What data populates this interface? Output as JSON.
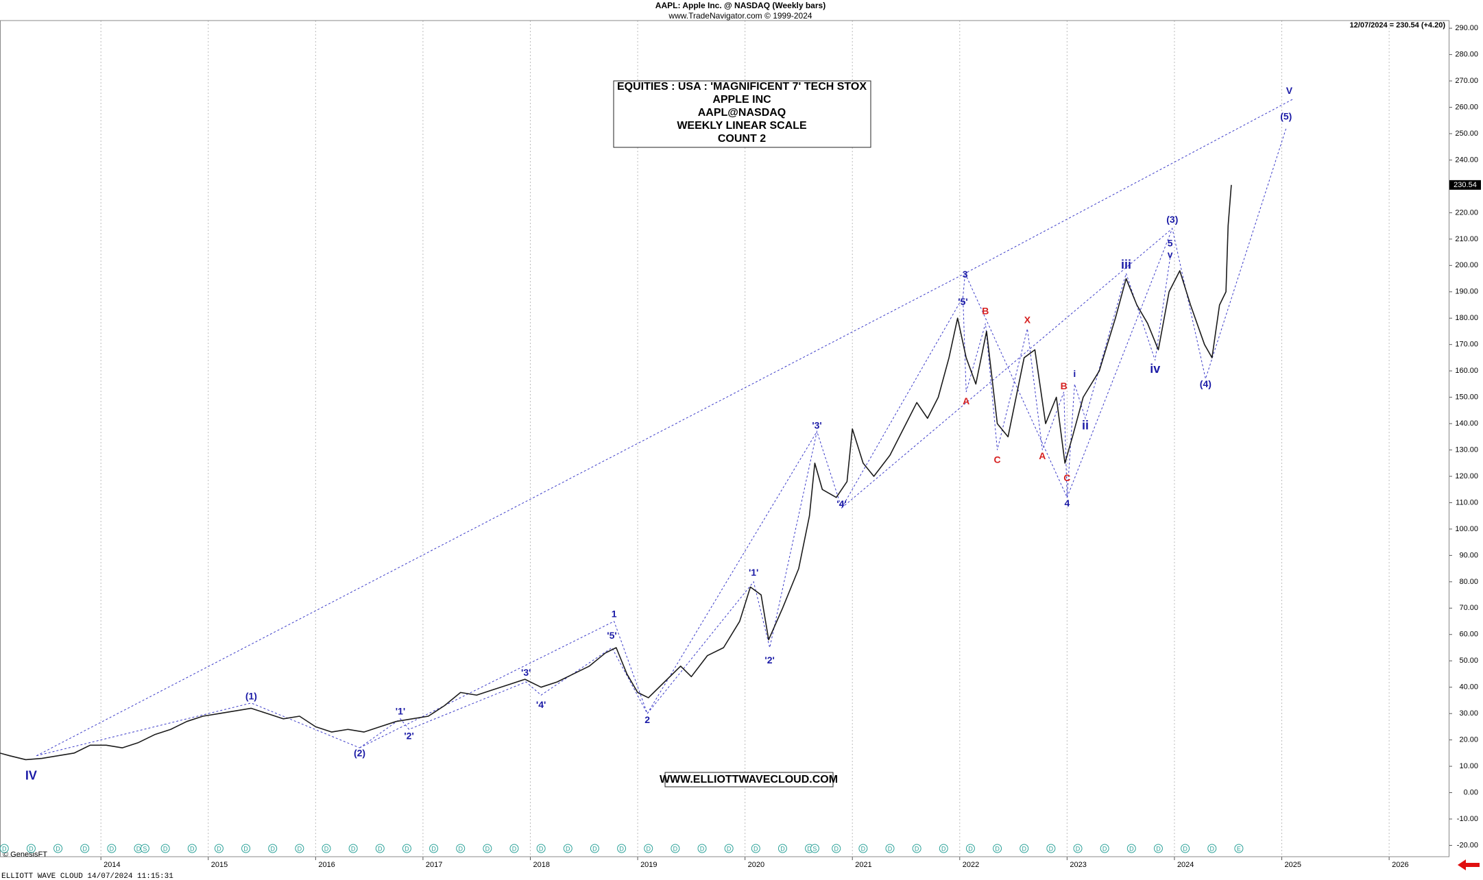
{
  "chart_data": {
    "type": "line",
    "title": "AAPL:  Apple Inc. @ NASDAQ  (Weekly bars)",
    "subtitle": "www.TradeNavigator.com © 1999-2024",
    "last_quote": "12/07/2024 = 230.54 (+4.20)",
    "info_box": [
      "EQUITIES : USA : 'MAGNIFICENT 7' TECH STOX",
      "APPLE INC",
      "AAPL@NASDAQ",
      "WEEKLY LINEAR SCALE",
      "COUNT 2"
    ],
    "website": "WWW.ELLIOTTWAVECLOUD.COM",
    "credit": "© GenesisFT",
    "footer": "ELLIOTT WAVE CLOUD   14/07/2024 11:15:31",
    "color": "#1a1a1a",
    "x": [
      2013.06,
      2013.15,
      2013.3,
      2013.45,
      2013.6,
      2013.75,
      2013.9,
      2014.05,
      2014.2,
      2014.35,
      2014.5,
      2014.65,
      2014.8,
      2014.95,
      2015.1,
      2015.25,
      2015.4,
      2015.55,
      2015.7,
      2015.85,
      2016.0,
      2016.15,
      2016.3,
      2016.45,
      2016.6,
      2016.75,
      2016.9,
      2017.05,
      2017.2,
      2017.35,
      2017.5,
      2017.65,
      2017.8,
      2017.95,
      2018.1,
      2018.25,
      2018.4,
      2018.55,
      2018.7,
      2018.8,
      2018.9,
      2019.0,
      2019.1,
      2019.25,
      2019.4,
      2019.5,
      2019.65,
      2019.8,
      2019.95,
      2020.05,
      2020.15,
      2020.22,
      2020.35,
      2020.5,
      2020.6,
      2020.65,
      2020.72,
      2020.85,
      2020.95,
      2021.0,
      2021.1,
      2021.2,
      2021.35,
      2021.5,
      2021.6,
      2021.7,
      2021.8,
      2021.9,
      2021.98,
      2022.06,
      2022.15,
      2022.25,
      2022.35,
      2022.45,
      2022.6,
      2022.7,
      2022.8,
      2022.9,
      2022.98,
      2023.05,
      2023.15,
      2023.3,
      2023.45,
      2023.55,
      2023.65,
      2023.75,
      2023.85,
      2023.95,
      2024.05,
      2024.15,
      2024.28,
      2024.35,
      2024.42,
      2024.48,
      2024.5,
      2024.53
    ],
    "values": [
      15,
      14,
      12.5,
      13,
      14,
      15,
      18,
      18,
      17,
      19,
      22,
      24,
      27,
      29,
      30,
      31,
      32,
      30,
      28,
      29,
      25,
      23,
      24,
      23,
      25,
      27,
      28,
      29,
      33,
      38,
      37,
      39,
      41,
      43,
      40,
      42,
      45,
      48,
      53,
      55,
      45,
      38,
      36,
      42,
      48,
      44,
      52,
      55,
      65,
      78,
      75,
      58,
      70,
      85,
      105,
      125,
      115,
      112,
      118,
      138,
      125,
      120,
      128,
      140,
      148,
      142,
      150,
      165,
      180,
      165,
      155,
      175,
      140,
      135,
      165,
      168,
      140,
      150,
      125,
      135,
      150,
      160,
      180,
      195,
      185,
      178,
      168,
      190,
      198,
      185,
      170,
      165,
      185,
      190,
      215,
      230.54
    ],
    "xlim": [
      2013.06,
      2026.555
    ],
    "xticks": [
      2014,
      2015,
      2016,
      2017,
      2018,
      2019,
      2020,
      2021,
      2022,
      2023,
      2024,
      2025,
      2026
    ],
    "ylim": [
      -24.3,
      292.9
    ],
    "yticks": [
      {
        "value": -20,
        "label": "-20.00"
      },
      {
        "value": -10,
        "label": "-10.00"
      },
      {
        "value": 0,
        "label": "0.00"
      },
      {
        "value": 10,
        "label": "10.00"
      },
      {
        "value": 20,
        "label": "20.00"
      },
      {
        "value": 30,
        "label": "30.00"
      },
      {
        "value": 40,
        "label": "40.00"
      },
      {
        "value": 50,
        "label": "50.00"
      },
      {
        "value": 60,
        "label": "60.00"
      },
      {
        "value": 70,
        "label": "70.00"
      },
      {
        "value": 80,
        "label": "80.00"
      },
      {
        "value": 90,
        "label": "90.00"
      },
      {
        "value": 100,
        "label": "100.00"
      },
      {
        "value": 110,
        "label": "110.00"
      },
      {
        "value": 120,
        "label": "120.00"
      },
      {
        "value": 130,
        "label": "130.00"
      },
      {
        "value": 140,
        "label": "140.00"
      },
      {
        "value": 150,
        "label": "150.00"
      },
      {
        "value": 160,
        "label": "160.00"
      },
      {
        "value": 170,
        "label": "170.00"
      },
      {
        "value": 180,
        "label": "180.00"
      },
      {
        "value": 190,
        "label": "190.00"
      },
      {
        "value": 200,
        "label": "200.00"
      },
      {
        "value": 210,
        "label": "210.00"
      },
      {
        "value": 220,
        "label": "220.00"
      },
      {
        "value": 230,
        "label": "230.00"
      },
      {
        "value": 240,
        "label": "240.00"
      },
      {
        "value": 250,
        "label": "250.00"
      },
      {
        "value": 260,
        "label": "260.00"
      },
      {
        "value": 270,
        "label": "270.00"
      },
      {
        "value": 280,
        "label": "280.00"
      },
      {
        "value": 290,
        "label": "290.00"
      }
    ],
    "grid": true,
    "trendline_color": "#3a3ac8",
    "trendlines": [
      {
        "x": [
          2013.4,
          2022.05,
          2025.1
        ],
        "y": [
          14,
          197,
          263
        ]
      },
      {
        "x": [
          2013.4,
          2015.4,
          2016.41
        ],
        "y": [
          14,
          34,
          17
        ]
      },
      {
        "x": [
          2016.41,
          2016.79,
          2016.87,
          2017.96,
          2018.1,
          2018.76,
          2019.09
        ],
        "y": [
          17,
          28,
          24,
          42,
          37,
          55,
          30
        ]
      },
      {
        "x": [
          2016.41,
          2018.78,
          2019.09
        ],
        "y": [
          17,
          65,
          30
        ]
      },
      {
        "x": [
          2019.09,
          2020.08,
          2020.23,
          2020.67,
          2020.9,
          2022.03,
          2022.05
        ],
        "y": [
          30,
          80,
          55,
          137,
          108,
          188,
          197
        ]
      },
      {
        "x": [
          2019.09,
          2020.67
        ],
        "y": [
          30,
          137
        ]
      },
      {
        "x": [
          2022.05,
          2023.0
        ],
        "y": [
          197,
          112
        ]
      },
      {
        "x": [
          2022.03,
          2022.06,
          2022.24,
          2022.35,
          2022.63,
          2022.77,
          2022.97,
          2023.0
        ],
        "y": [
          188,
          152,
          178,
          130,
          176,
          130,
          152,
          112
        ]
      },
      {
        "x": [
          2020.9,
          2023.98
        ],
        "y": [
          108,
          214
        ]
      },
      {
        "x": [
          2023.0,
          2023.98,
          2024.29,
          2025.04
        ],
        "y": [
          112,
          214,
          157,
          252
        ]
      },
      {
        "x": [
          2023.0,
          2023.07,
          2023.17,
          2023.55,
          2023.82,
          2023.96
        ],
        "y": [
          112,
          155,
          142,
          197,
          164,
          203
        ]
      }
    ],
    "waves": [
      {
        "label": "IV",
        "x": 2013.35,
        "y": 6.2,
        "color": "#1a1aa6"
      },
      {
        "label": "(1)",
        "x": 2015.4,
        "y": 36.3,
        "color": "#1a1aa6"
      },
      {
        "label": "(2)",
        "x": 2016.41,
        "y": 14.8,
        "color": "#1a1aa6"
      },
      {
        "label": "'1'",
        "x": 2016.79,
        "y": 30.6,
        "color": "#1a1aa6"
      },
      {
        "label": "'2'",
        "x": 2016.87,
        "y": 21.3,
        "color": "#1a1aa6"
      },
      {
        "label": "'3'",
        "x": 2017.96,
        "y": 45.3,
        "color": "#1a1aa6"
      },
      {
        "label": "'4'",
        "x": 2018.1,
        "y": 33.1,
        "color": "#1a1aa6"
      },
      {
        "label": "1",
        "x": 2018.78,
        "y": 67.5,
        "color": "#1a1aa6"
      },
      {
        "label": "'5'",
        "x": 2018.76,
        "y": 59.3,
        "color": "#1a1aa6"
      },
      {
        "label": "2",
        "x": 2019.09,
        "y": 27.4,
        "color": "#1a1aa6"
      },
      {
        "label": "'1'",
        "x": 2020.08,
        "y": 83.3,
        "color": "#1a1aa6"
      },
      {
        "label": "'2'",
        "x": 2020.23,
        "y": 50,
        "color": "#1a1aa6"
      },
      {
        "label": "'3'",
        "x": 2020.67,
        "y": 139,
        "color": "#1a1aa6"
      },
      {
        "label": "'4'",
        "x": 2020.9,
        "y": 109.2,
        "color": "#1a1aa6"
      },
      {
        "label": "3",
        "x": 2022.05,
        "y": 196.4,
        "color": "#1a1aa6"
      },
      {
        "label": "'5'",
        "x": 2022.03,
        "y": 186,
        "color": "#1a1aa6"
      },
      {
        "label": "A",
        "x": 2022.06,
        "y": 148.3,
        "color": "#d62020"
      },
      {
        "label": "B",
        "x": 2022.24,
        "y": 182.4,
        "color": "#d62020"
      },
      {
        "label": "C",
        "x": 2022.35,
        "y": 126,
        "color": "#d62020"
      },
      {
        "label": "X",
        "x": 2022.63,
        "y": 179.1,
        "color": "#d62020"
      },
      {
        "label": "A",
        "x": 2022.77,
        "y": 127.5,
        "color": "#d62020"
      },
      {
        "label": "B",
        "x": 2022.97,
        "y": 154,
        "color": "#d62020"
      },
      {
        "label": "C",
        "x": 2023.0,
        "y": 119.2,
        "color": "#d62020"
      },
      {
        "label": "4",
        "x": 2023.0,
        "y": 109.5,
        "color": "#1a1aa6"
      },
      {
        "label": "i",
        "x": 2023.07,
        "y": 158.7,
        "color": "#1a1aa6"
      },
      {
        "label": "ii",
        "x": 2023.17,
        "y": 139,
        "color": "#1a1aa6"
      },
      {
        "label": "iii",
        "x": 2023.55,
        "y": 200,
        "color": "#1a1aa6"
      },
      {
        "label": "iv",
        "x": 2023.82,
        "y": 160.5,
        "color": "#1a1aa6"
      },
      {
        "label": "5",
        "x": 2023.96,
        "y": 208.2,
        "color": "#1a1aa6"
      },
      {
        "label": "v",
        "x": 2023.96,
        "y": 203.9,
        "color": "#1a1aa6"
      },
      {
        "label": "(3)",
        "x": 2023.98,
        "y": 217.2,
        "color": "#1a1aa6"
      },
      {
        "label": "(4)",
        "x": 2024.29,
        "y": 154.7,
        "color": "#1a1aa6"
      },
      {
        "label": "(5)",
        "x": 2025.04,
        "y": 256.3,
        "color": "#1a1aa6"
      },
      {
        "label": "V",
        "x": 2025.07,
        "y": 266,
        "color": "#1a1aa6"
      }
    ],
    "event_color": "#2aa198",
    "dividend_label": "D",
    "dividends": [
      2013.1,
      2013.35,
      2013.6,
      2013.85,
      2014.1,
      2014.35,
      2014.6,
      2014.85,
      2015.1,
      2015.35,
      2015.6,
      2015.85,
      2016.1,
      2016.35,
      2016.6,
      2016.85,
      2017.1,
      2017.35,
      2017.6,
      2017.85,
      2018.1,
      2018.35,
      2018.6,
      2018.85,
      2019.1,
      2019.35,
      2019.6,
      2019.85,
      2020.1,
      2020.35,
      2020.6,
      2020.85,
      2021.1,
      2021.35,
      2021.6,
      2021.85,
      2022.1,
      2022.35,
      2022.6,
      2022.85,
      2023.1,
      2023.35,
      2023.6,
      2023.85,
      2024.1,
      2024.35
    ],
    "split_label": "S",
    "splits": [
      2014.41,
      2020.65
    ],
    "earnings_label": "E",
    "earnings": [
      2024.6
    ]
  }
}
